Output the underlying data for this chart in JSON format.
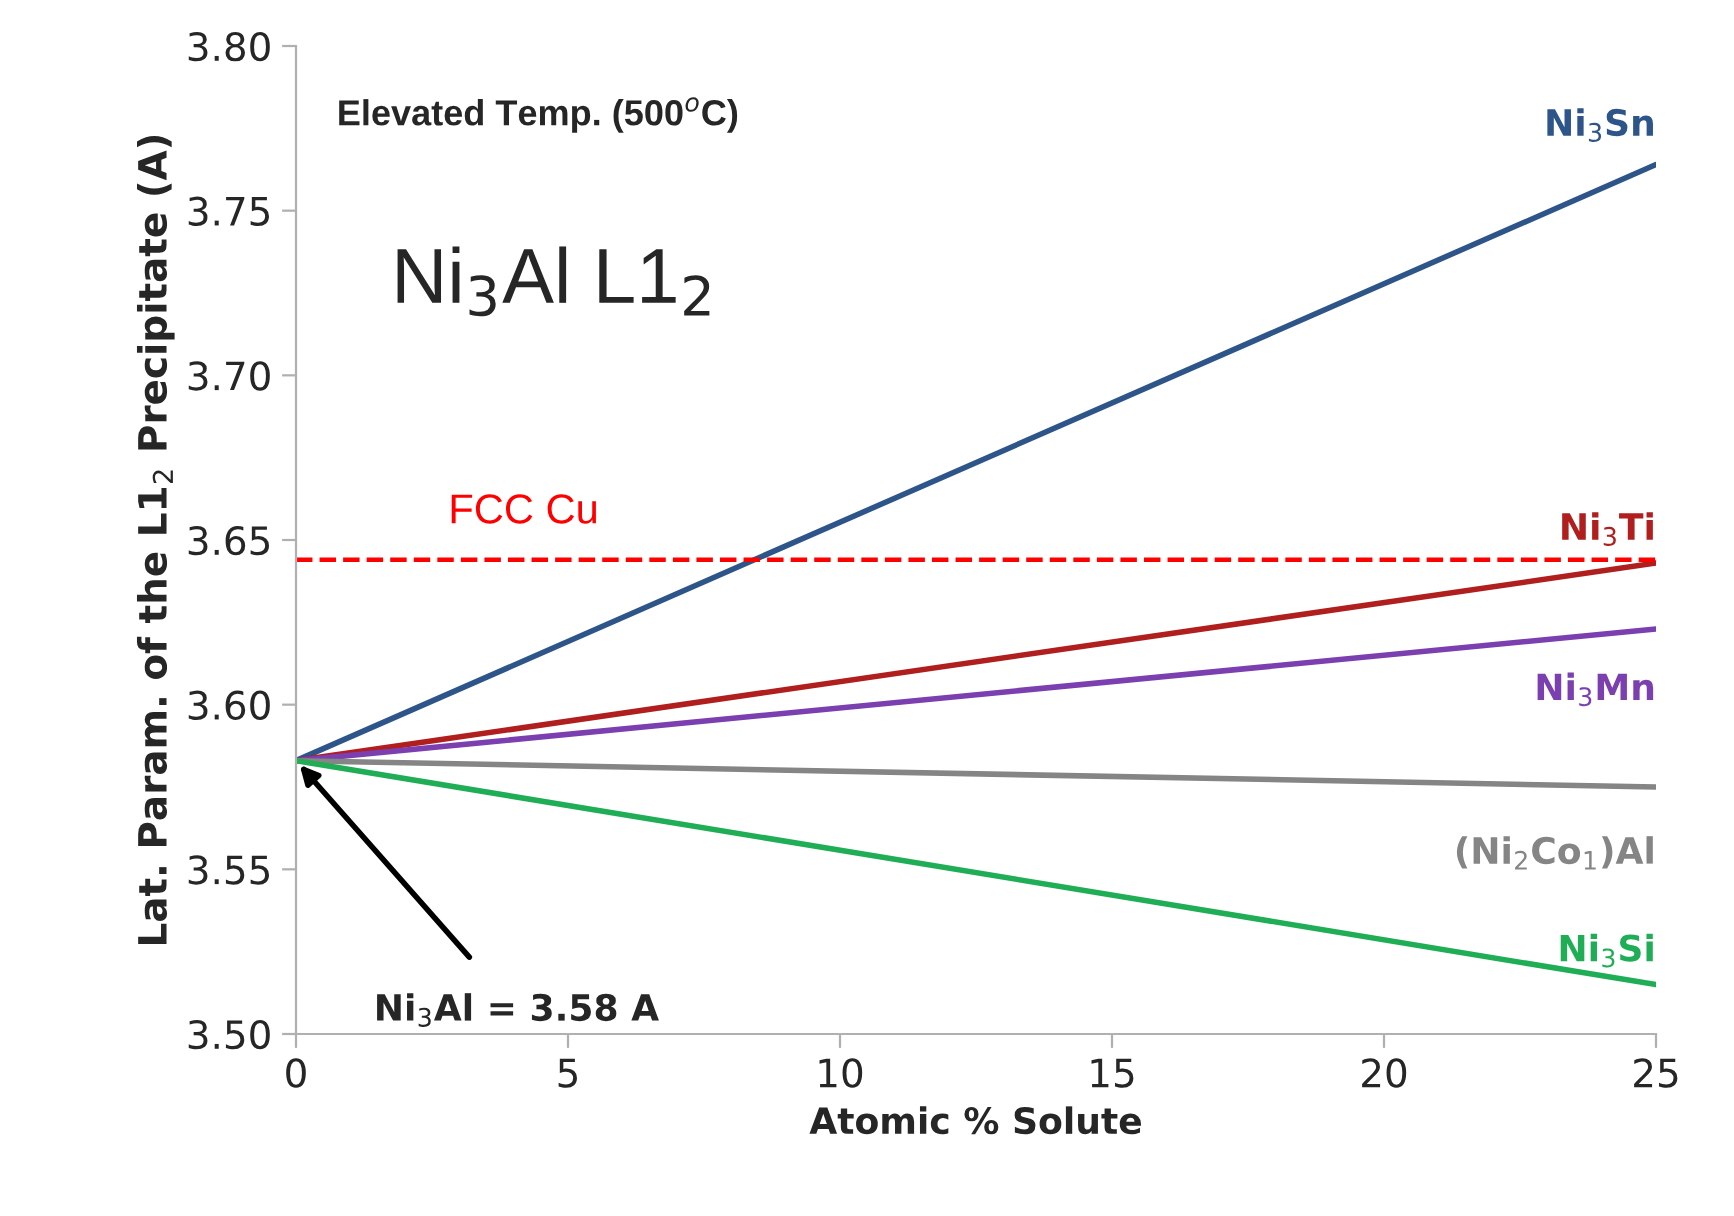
{
  "chart_data": {
    "type": "line",
    "xlabel": "Atomic % Solute",
    "ylabel": "Lat. Param. of the L1$_{2}$ Precipitate (A)",
    "x": [
      0,
      25
    ],
    "series": [
      {
        "name": "Ni$_{3}$Sn",
        "color": "#2e5589",
        "values": [
          3.583,
          3.764
        ]
      },
      {
        "name": "Ni$_{3}$Ti",
        "color": "#b01e1e",
        "values": [
          3.583,
          3.643
        ]
      },
      {
        "name": "Ni$_{3}$Mn",
        "color": "#7b3fb0",
        "values": [
          3.583,
          3.623
        ]
      },
      {
        "name": "(Ni$_{2}$Co$_{1}$)Al",
        "color": "#858585",
        "values": [
          3.583,
          3.575
        ]
      },
      {
        "name": "Ni$_{3}$Si",
        "color": "#1fae55",
        "values": [
          3.583,
          3.515
        ]
      }
    ],
    "ref_lines": [
      {
        "axis": "y",
        "value": 3.644,
        "label": "FCC Cu",
        "color": "#ff0000",
        "line_style": "dashed"
      }
    ],
    "annotations": [
      "Elevated Temp. (500$^{o}$C)",
      "Ni$_{3}$Al L1$_{2}$",
      {
        "text": "Ni$_{3}$Al = 3.58 A",
        "x": 0,
        "y": 3.583
      }
    ],
    "xlim": [
      0,
      25
    ],
    "ylim": [
      3.5,
      3.8
    ],
    "xticks": [
      0,
      5,
      10,
      15,
      20,
      25
    ],
    "yticks": [
      {
        "value": 3.5,
        "label": "3.50"
      },
      {
        "value": 3.55,
        "label": "3.55"
      },
      {
        "value": 3.6,
        "label": "3.60"
      },
      {
        "value": 3.65,
        "label": "3.65"
      },
      {
        "value": 3.7,
        "label": "3.70"
      },
      {
        "value": 3.75,
        "label": "3.75"
      },
      {
        "value": 3.8,
        "label": "3.80"
      }
    ],
    "grid": false,
    "legend": false,
    "marker": "none",
    "line_style": "solid"
  }
}
